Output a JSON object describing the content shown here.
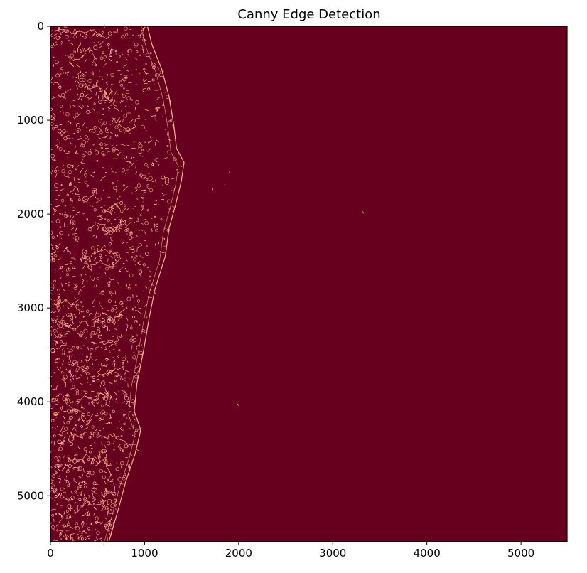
{
  "chart_data": {
    "type": "heatmap",
    "title": "Canny Edge Detection",
    "xlabel": "",
    "ylabel": "",
    "xlim": [
      0,
      5490
    ],
    "ylim": [
      5490,
      0
    ],
    "x_ticks": [
      0,
      1000,
      2000,
      3000,
      4000,
      5000
    ],
    "y_ticks": [
      0,
      1000,
      2000,
      3000,
      4000,
      5000
    ],
    "x_tick_labels": [
      "0",
      "1000",
      "2000",
      "3000",
      "4000",
      "5000"
    ],
    "y_tick_labels": [
      "0",
      "1000",
      "2000",
      "3000",
      "4000",
      "5000"
    ],
    "colormap": "reds_r",
    "colors": {
      "background": "#67001f",
      "edge": "#fdb38a",
      "edge_bright": "#fddbc7"
    },
    "coastline": [
      [
        1030,
        0
      ],
      [
        1080,
        200
      ],
      [
        1180,
        450
      ],
      [
        1260,
        750
      ],
      [
        1310,
        1050
      ],
      [
        1340,
        1300
      ],
      [
        1420,
        1450
      ],
      [
        1390,
        1650
      ],
      [
        1330,
        1900
      ],
      [
        1260,
        2150
      ],
      [
        1220,
        2450
      ],
      [
        1110,
        2800
      ],
      [
        1050,
        3100
      ],
      [
        990,
        3450
      ],
      [
        920,
        3800
      ],
      [
        890,
        4100
      ],
      [
        960,
        4300
      ],
      [
        900,
        4550
      ],
      [
        800,
        4850
      ],
      [
        720,
        5150
      ],
      [
        620,
        5490
      ]
    ],
    "isolated_edges": [
      [
        1900,
        1550
      ],
      [
        1850,
        1680
      ],
      [
        1720,
        1720
      ],
      [
        3320,
        1970
      ],
      [
        1990,
        4020
      ]
    ]
  }
}
